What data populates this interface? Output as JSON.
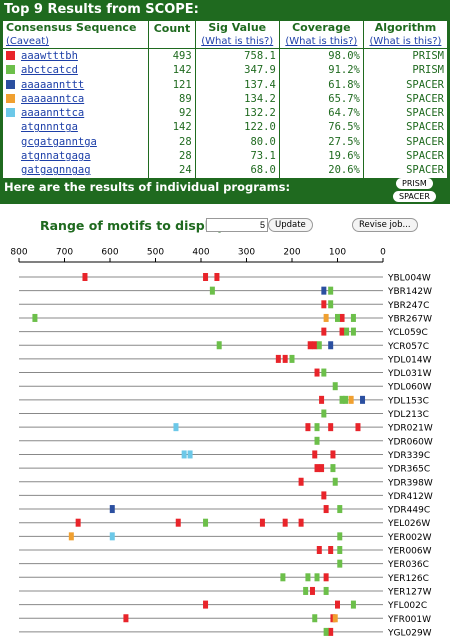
{
  "header": {
    "title": "Top 9 Results from SCOPE:"
  },
  "table": {
    "columns": [
      {
        "label": "Consensus Sequence",
        "link": "(Caveat)"
      },
      {
        "label": "Count"
      },
      {
        "label": "Sig Value",
        "link": "(What is this?)"
      },
      {
        "label": "Coverage",
        "link": "(What is this?)"
      },
      {
        "label": "Algorithm",
        "link": "(What is this?)"
      }
    ],
    "rows": [
      [
        "aaawtttbh",
        493,
        "758.1",
        "98.0%",
        "PRISM"
      ],
      [
        "abctcatcd",
        142,
        "347.9",
        "91.2%",
        "PRISM"
      ],
      [
        "aaaaannttt",
        121,
        "137.4",
        "61.8%",
        "SPACER"
      ],
      [
        "aaaaanntca",
        89,
        "134.2",
        "65.7%",
        "SPACER"
      ],
      [
        "aaaannttca",
        92,
        "132.2",
        "64.7%",
        "SPACER"
      ],
      [
        "atgnnntga",
        142,
        "122.0",
        "76.5%",
        "SPACER"
      ],
      [
        "gcgatganntga",
        28,
        "80.0",
        "27.5%",
        "SPACER"
      ],
      [
        "atgnnatgaga",
        28,
        "73.1",
        "19.6%",
        "SPACER"
      ],
      [
        "gatgagnngag",
        24,
        "68.0",
        "20.6%",
        "SPACER"
      ]
    ]
  },
  "programs": {
    "text": "Here are the results of individual programs:",
    "buttons": [
      "PRISM",
      "SPACER"
    ]
  },
  "controls": {
    "label": "Range of motifs to display:",
    "value": 5,
    "buttons": [
      "Update",
      "Revise job..."
    ]
  },
  "chart_data": {
    "type": "motif-map",
    "xlim": [
      800,
      0
    ],
    "xticks": [
      800,
      700,
      600,
      500,
      400,
      300,
      200,
      100,
      0
    ],
    "categories": [
      "YBL004W",
      "YBR142W",
      "YBR247C",
      "YBR267W",
      "YCL059C",
      "YCR057C",
      "YDL014W",
      "YDL031W",
      "YDL060W",
      "YDL153C",
      "YDL213C",
      "YDR021W",
      "YDR060W",
      "YDR339C",
      "YDR365C",
      "YDR398W",
      "YDR412W",
      "YDR449C",
      "YEL026W",
      "YER002W",
      "YER006W",
      "YER036C",
      "YER126C",
      "YER127W",
      "YFL002C",
      "YFR001W",
      "YGL029W"
    ],
    "series": [
      {
        "color": "#e8242a",
        "sites": [
          {
            "gene": "YBL004W",
            "x": 655
          },
          {
            "gene": "YBL004W",
            "x": 390
          },
          {
            "gene": "YBL004W",
            "x": 365
          },
          {
            "gene": "YBR247C",
            "x": 130
          },
          {
            "gene": "YBR267W",
            "x": 90
          },
          {
            "gene": "YCL059C",
            "x": 130
          },
          {
            "gene": "YCL059C",
            "x": 90
          },
          {
            "gene": "YCR057C",
            "x": 160
          },
          {
            "gene": "YCR057C",
            "x": 150
          },
          {
            "gene": "YDL014W",
            "x": 230
          },
          {
            "gene": "YDL014W",
            "x": 215
          },
          {
            "gene": "YDL031W",
            "x": 145
          },
          {
            "gene": "YDL153C",
            "x": 135
          },
          {
            "gene": "YDR021W",
            "x": 165
          },
          {
            "gene": "YDR021W",
            "x": 115
          },
          {
            "gene": "YDR021W",
            "x": 55
          },
          {
            "gene": "YDR339C",
            "x": 150
          },
          {
            "gene": "YDR339C",
            "x": 110
          },
          {
            "gene": "YDR365C",
            "x": 145
          },
          {
            "gene": "YDR365C",
            "x": 135
          },
          {
            "gene": "YDR398W",
            "x": 180
          },
          {
            "gene": "YDR412W",
            "x": 130
          },
          {
            "gene": "YDR449C",
            "x": 125
          },
          {
            "gene": "YEL026W",
            "x": 670
          },
          {
            "gene": "YEL026W",
            "x": 450
          },
          {
            "gene": "YEL026W",
            "x": 265
          },
          {
            "gene": "YEL026W",
            "x": 215
          },
          {
            "gene": "YEL026W",
            "x": 180
          },
          {
            "gene": "YER006W",
            "x": 140
          },
          {
            "gene": "YER006W",
            "x": 115
          },
          {
            "gene": "YER126C",
            "x": 125
          },
          {
            "gene": "YER127W",
            "x": 155
          },
          {
            "gene": "YFL002C",
            "x": 390
          },
          {
            "gene": "YFL002C",
            "x": 100
          },
          {
            "gene": "YFR001W",
            "x": 565
          },
          {
            "gene": "YFR001W",
            "x": 110
          },
          {
            "gene": "YGL029W",
            "x": 115
          }
        ]
      },
      {
        "color": "#6cbf4a",
        "sites": [
          {
            "gene": "YBR142W",
            "x": 375
          },
          {
            "gene": "YBR142W",
            "x": 115
          },
          {
            "gene": "YBR247C",
            "x": 115
          },
          {
            "gene": "YBR267W",
            "x": 765
          },
          {
            "gene": "YBR267W",
            "x": 100
          },
          {
            "gene": "YBR267W",
            "x": 65
          },
          {
            "gene": "YCL059C",
            "x": 80
          },
          {
            "gene": "YCL059C",
            "x": 65
          },
          {
            "gene": "YCR057C",
            "x": 360
          },
          {
            "gene": "YCR057C",
            "x": 140
          },
          {
            "gene": "YDL014W",
            "x": 200
          },
          {
            "gene": "YDL031W",
            "x": 130
          },
          {
            "gene": "YDL060W",
            "x": 105
          },
          {
            "gene": "YDL153C",
            "x": 90
          },
          {
            "gene": "YDL153C",
            "x": 82
          },
          {
            "gene": "YDL213C",
            "x": 130
          },
          {
            "gene": "YDR021W",
            "x": 145
          },
          {
            "gene": "YDR060W",
            "x": 145
          },
          {
            "gene": "YDR365C",
            "x": 110
          },
          {
            "gene": "YDR398W",
            "x": 105
          },
          {
            "gene": "YDR449C",
            "x": 95
          },
          {
            "gene": "YEL026W",
            "x": 390
          },
          {
            "gene": "YER002W",
            "x": 95
          },
          {
            "gene": "YER006W",
            "x": 95
          },
          {
            "gene": "YER036C",
            "x": 95
          },
          {
            "gene": "YER126C",
            "x": 220
          },
          {
            "gene": "YER126C",
            "x": 165
          },
          {
            "gene": "YER126C",
            "x": 145
          },
          {
            "gene": "YER127W",
            "x": 170
          },
          {
            "gene": "YER127W",
            "x": 125
          },
          {
            "gene": "YFL002C",
            "x": 65
          },
          {
            "gene": "YFR001W",
            "x": 150
          },
          {
            "gene": "YGL029W",
            "x": 125
          }
        ]
      },
      {
        "color": "#2b4fa0",
        "sites": [
          {
            "gene": "YBR142W",
            "x": 130
          },
          {
            "gene": "YCR057C",
            "x": 115
          },
          {
            "gene": "YDL153C",
            "x": 45
          },
          {
            "gene": "YDR449C",
            "x": 595
          }
        ]
      },
      {
        "color": "#f0a030",
        "sites": [
          {
            "gene": "YBR267W",
            "x": 125
          },
          {
            "gene": "YDL153C",
            "x": 70
          },
          {
            "gene": "YER002W",
            "x": 685
          },
          {
            "gene": "YFR001W",
            "x": 105
          }
        ]
      },
      {
        "color": "#6cc8e8",
        "sites": [
          {
            "gene": "YDR021W",
            "x": 455
          },
          {
            "gene": "YDR339C",
            "x": 437
          },
          {
            "gene": "YDR339C",
            "x": 424
          },
          {
            "gene": "YER002W",
            "x": 595
          }
        ]
      }
    ]
  }
}
